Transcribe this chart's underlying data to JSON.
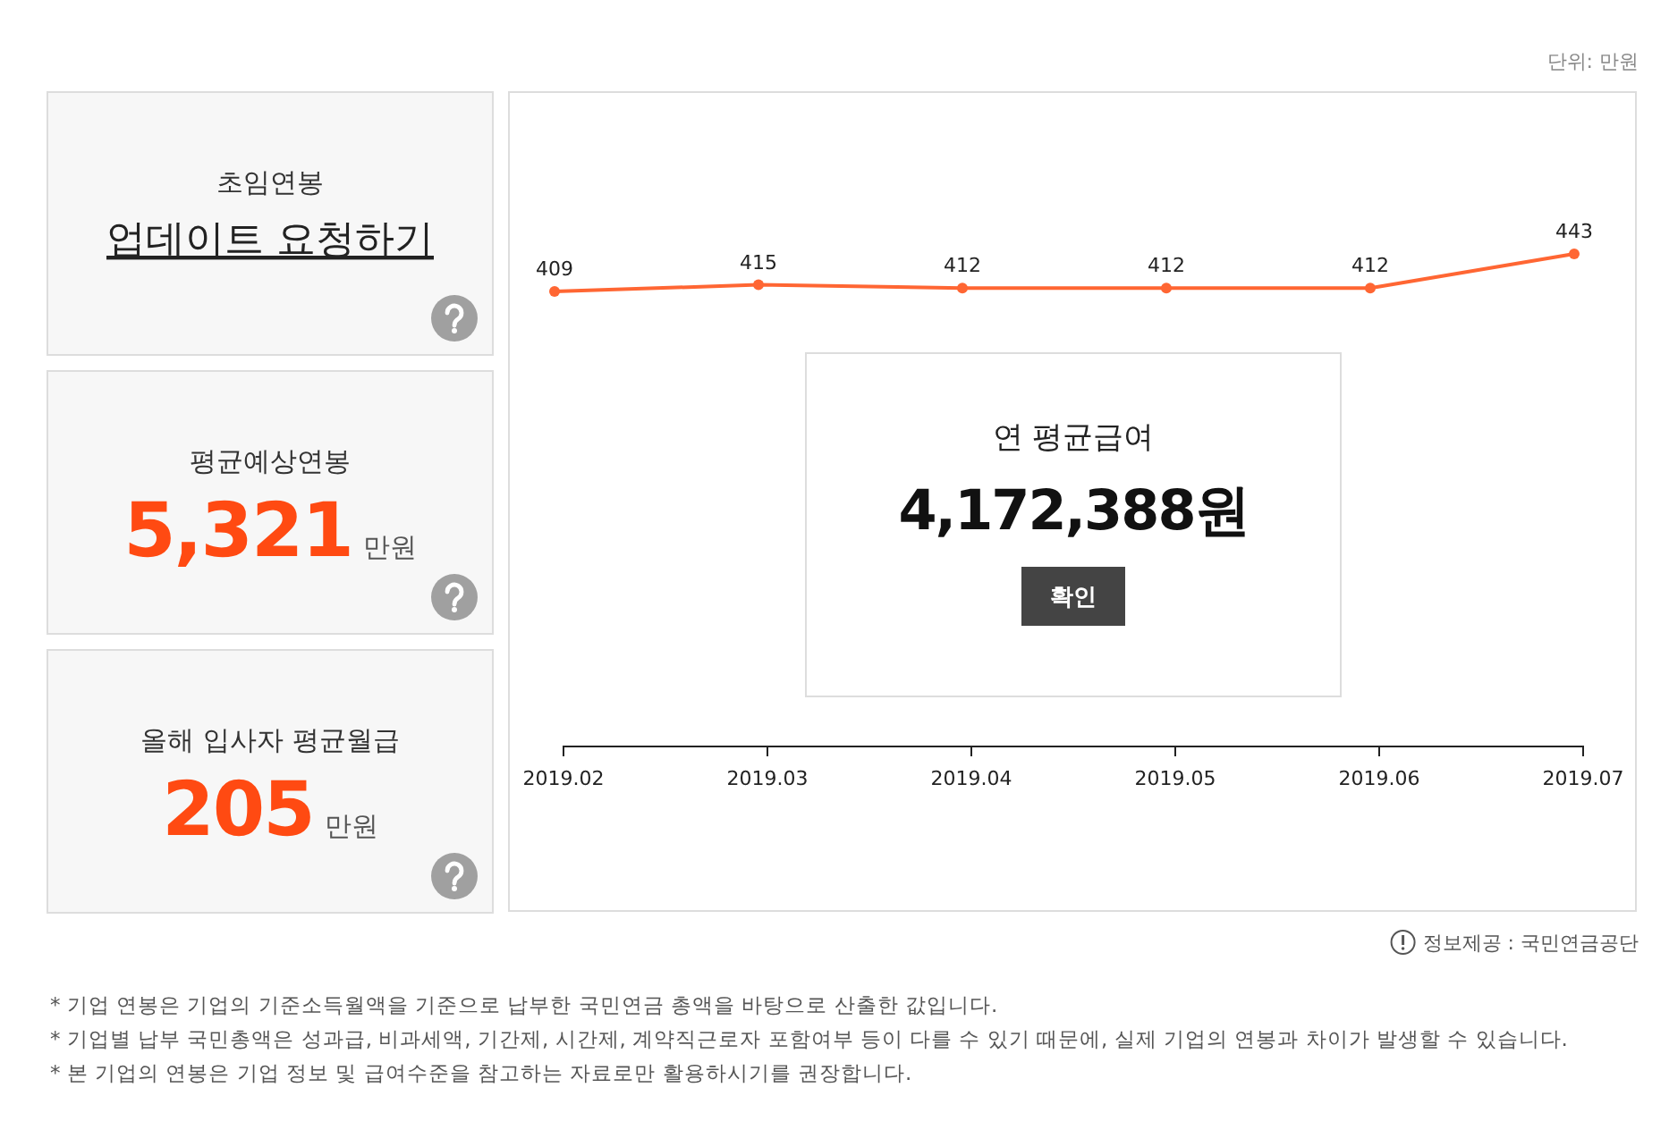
{
  "chart_data": [
    {
      "type": "other",
      "title": "초임연봉",
      "annotations": [
        "업데이트 요청하기"
      ]
    },
    {
      "type": "other",
      "title": "평균예상연봉",
      "annotations": [
        "5,321",
        "만원"
      ]
    },
    {
      "type": "other",
      "title": "올해 입사자 평균월급",
      "annotations": [
        "205",
        "만원"
      ]
    },
    {
      "type": "line",
      "categories": [
        "2019.02",
        "2019.03",
        "2019.04",
        "2019.05",
        "2019.06",
        "2019.07"
      ],
      "series": [
        {
          "color": "#ff6633",
          "values": [
            409,
            415,
            412,
            412,
            412,
            443
          ]
        }
      ],
      "data_labels": true,
      "marker": "circle",
      "annotations": [
        "연 평균급여",
        "4,172,388원",
        "확인",
        "단위: 만원",
        "정보제공 : 국민연금공단",
        "* 기업 연봉은 기업의 기준소득월액을 기준으로 납부한 국민연금 총액을 바탕으로 산출한 값입니다.",
        "* 기업별 납부 국민총액은 성과급, 비과세액, 기간제, 시간제, 계약직근로자 포함여부 등이 다를 수 있기 때문에, 실제 기업의 연봉과 차이가 발생할 수 있습니다.",
        "* 본 기업의 연봉은 기업 정보 및 급여수준을 참고하는 자료로만 활용하시기를 권장합니다."
      ]
    }
  ]
}
